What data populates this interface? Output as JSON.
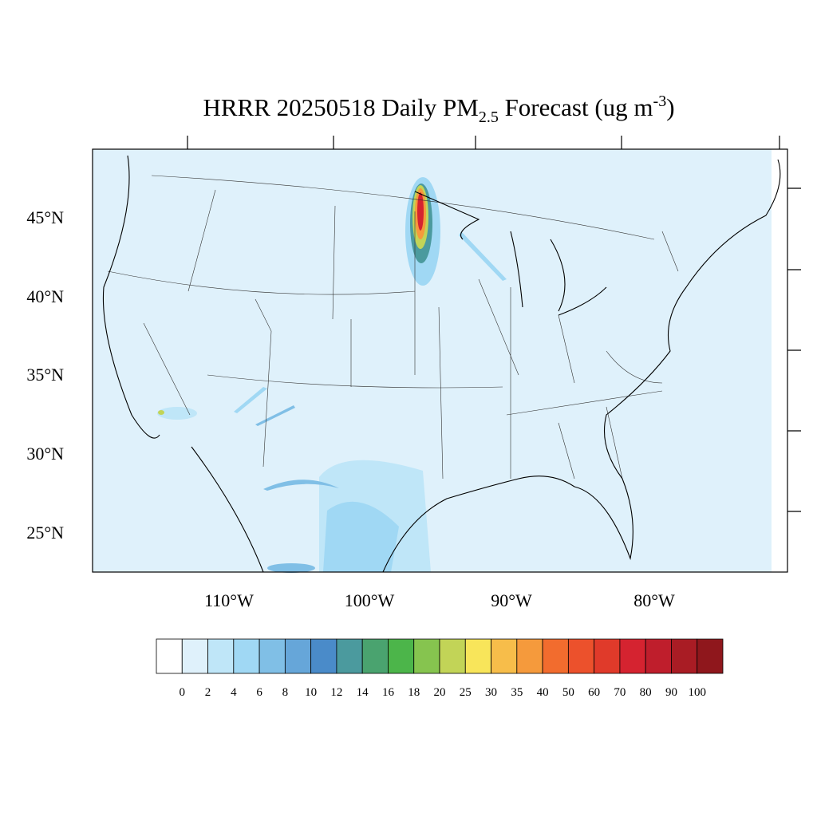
{
  "title": {
    "main": "HRRR 20250518 Daily PM",
    "sub": "2.5",
    "middle": " Forecast (ug m",
    "sup": "-3",
    "end": ")"
  },
  "lat_labels": [
    "45°N",
    "40°N",
    "35°N",
    "30°N",
    "25°N"
  ],
  "lon_labels": [
    "110°W",
    "100°W",
    "90°W",
    "80°W"
  ],
  "colorbar": {
    "levels": [
      0,
      2,
      4,
      6,
      8,
      10,
      12,
      14,
      16,
      18,
      20,
      25,
      30,
      35,
      40,
      50,
      60,
      70,
      80,
      90,
      100
    ],
    "colors": [
      "#ffffff",
      "#dff1fb",
      "#bfe6f8",
      "#a0d8f4",
      "#80bfe6",
      "#66a6d9",
      "#4a8bc9",
      "#4b9a9e",
      "#4aa36f",
      "#4cb54a",
      "#86c44f",
      "#c2d457",
      "#f8e55a",
      "#f7bd4a",
      "#f59a3c",
      "#f26c2e",
      "#ec512c",
      "#e03a2a",
      "#d52330",
      "#bf1e2c",
      "#a91c24",
      "#8f171c"
    ]
  }
}
